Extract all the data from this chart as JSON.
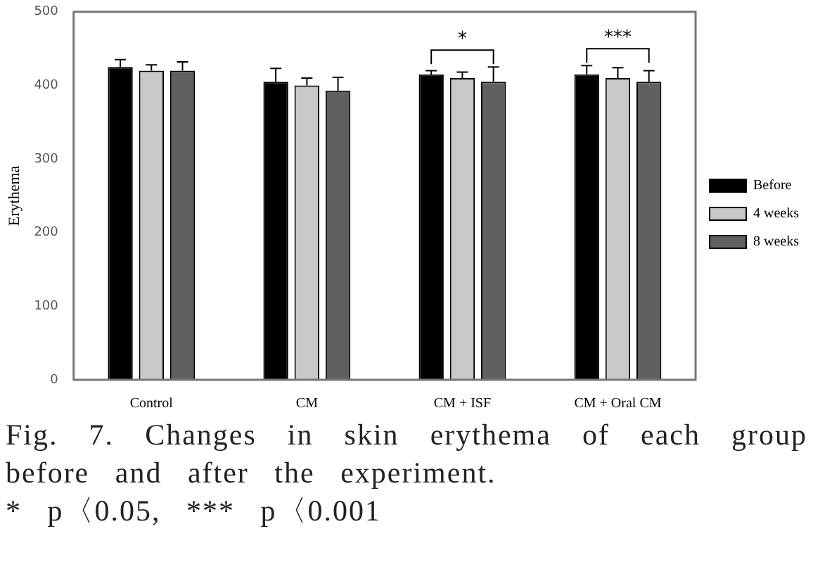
{
  "chart_data": {
    "type": "bar",
    "ylabel": "Erythema",
    "categories": [
      "Control",
      "CM",
      "CM + ISF",
      "CM + Oral CM"
    ],
    "series": [
      {
        "name": "Before",
        "color": "#000000",
        "values": [
          425,
          405,
          415,
          415
        ],
        "errors": [
          10,
          18,
          5,
          12
        ]
      },
      {
        "name": "4 weeks",
        "color": "#c8c8c8",
        "values": [
          420,
          400,
          410,
          410
        ],
        "errors": [
          8,
          10,
          8,
          14
        ]
      },
      {
        "name": "8 weeks",
        "color": "#606060",
        "values": [
          420,
          393,
          405,
          405
        ],
        "errors": [
          12,
          18,
          20,
          15
        ]
      }
    ],
    "ylim": [
      0,
      500
    ],
    "yticks": [
      0,
      100,
      200,
      300,
      400,
      500
    ],
    "grid": false,
    "legend": "right",
    "annotations": [
      "*",
      "***",
      "Fig. 7. Changes in skin erythema of each group before and after the experiment.",
      "* p〈0.05, *** p〈0.001"
    ]
  }
}
